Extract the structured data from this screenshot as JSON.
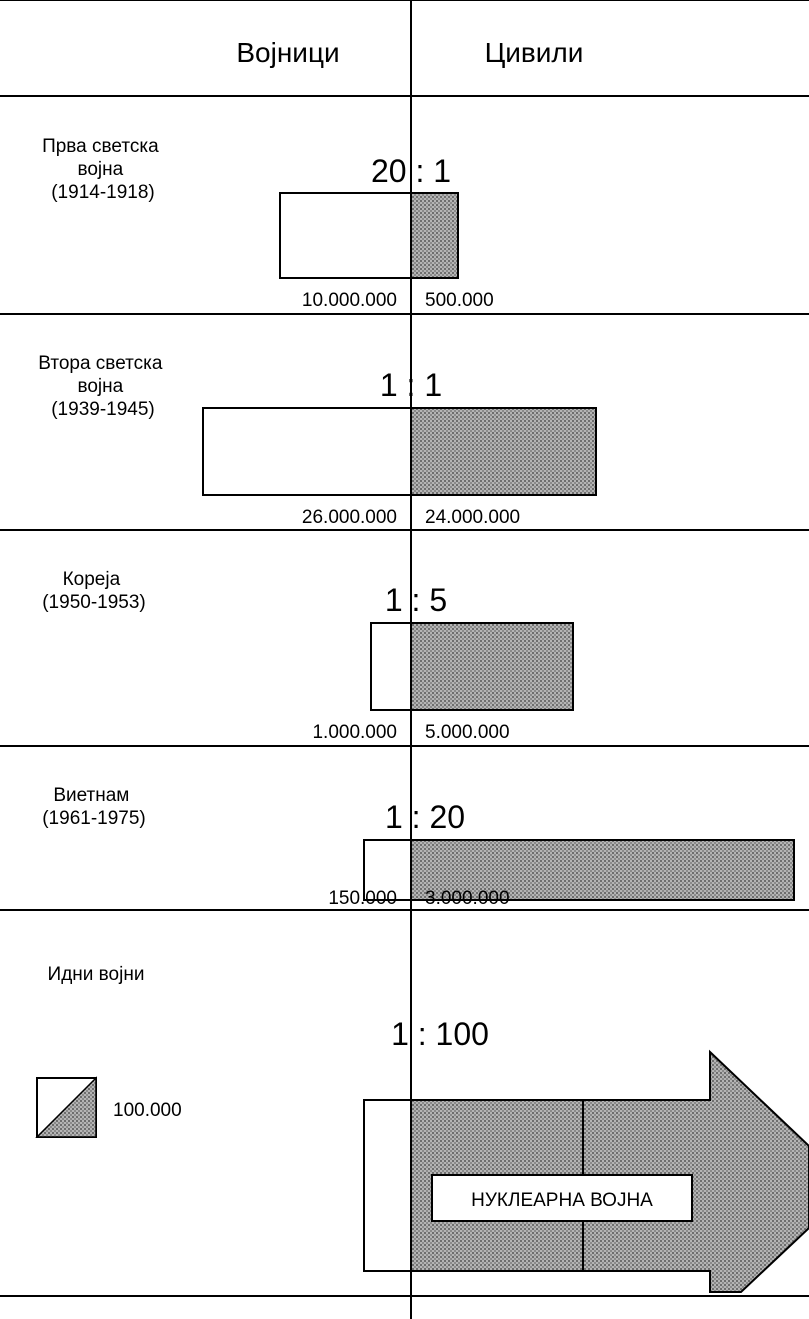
{
  "header": {
    "soldiers_label": "Војници",
    "civilians_label": "Цивили"
  },
  "chart_data": {
    "type": "bar",
    "orientation": "horizontal-diverging",
    "title": "",
    "unit_note": "100.000",
    "colors": {
      "soldiers": "#ffffff",
      "civilians": "#a9a9a9",
      "outline": "#000000"
    },
    "rows": [
      {
        "label_lines": [
          "Прва светска",
          "војна",
          "(1914-1918)"
        ],
        "ratio": "20 : 1",
        "soldiers": 10000000,
        "civilians": 500000,
        "soldiers_label": "10.000.000",
        "civilians_label": "500.000"
      },
      {
        "label_lines": [
          "Втора светска",
          "војна",
          "(1939-1945)"
        ],
        "ratio": "1 : 1",
        "soldiers": 26000000,
        "civilians": 24000000,
        "soldiers_label": "26.000.000",
        "civilians_label": "24.000.000"
      },
      {
        "label_lines": [
          "Кореја",
          "(1950-1953)"
        ],
        "ratio": "1 : 5",
        "soldiers": 1000000,
        "civilians": 5000000,
        "soldiers_label": "1.000.000",
        "civilians_label": "5.000.000"
      },
      {
        "label_lines": [
          "Виетнам",
          "(1961-1975)"
        ],
        "ratio": "1 : 20",
        "soldiers": 150000,
        "civilians": 3000000,
        "soldiers_label": "150.000",
        "civilians_label": "3.000.000"
      },
      {
        "label_lines": [
          "Идни војни"
        ],
        "ratio": "1 : 100",
        "arrow_text": "НУКЛЕАРНА ВОЈНА"
      }
    ]
  }
}
